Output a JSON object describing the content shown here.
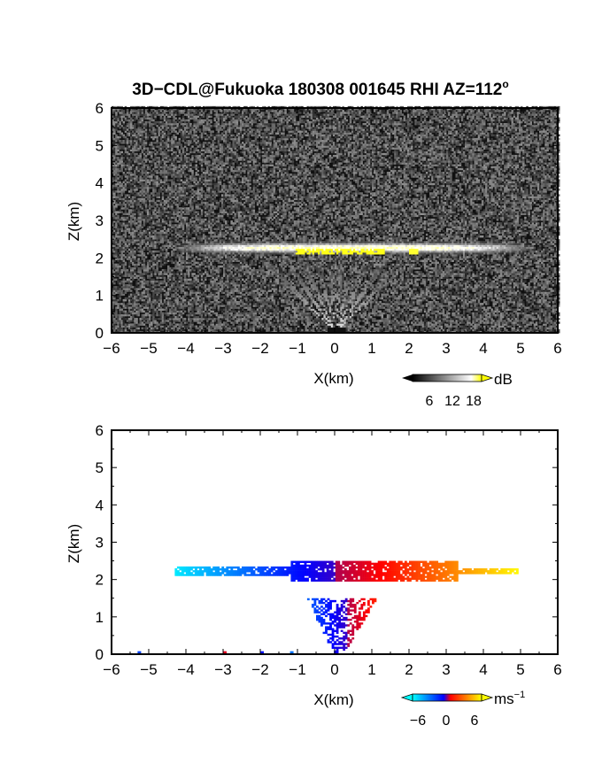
{
  "title": "3D−CDL@Fukuoka 180308 001645 RHI AZ=112",
  "title_superscript": "o",
  "chart_data": [
    {
      "type": "heatmap",
      "name": "reflectivity",
      "xlabel": "X(km)",
      "ylabel": "Z(km)",
      "xlim": [
        -6,
        6
      ],
      "ylim": [
        0,
        6
      ],
      "xticks": [
        "−6",
        "−5",
        "−4",
        "−3",
        "−2",
        "−1",
        "0",
        "1",
        "2",
        "3",
        "4",
        "5",
        "6"
      ],
      "yticks": [
        "0",
        "1",
        "2",
        "3",
        "4",
        "5",
        "6"
      ],
      "background": "#101010",
      "colorbar": {
        "unit": "dB",
        "ticks": [
          "6",
          "12",
          "18"
        ],
        "colors": [
          "#000000",
          "#ffffff",
          "#ffff00"
        ],
        "range": [
          0,
          21
        ]
      },
      "features": [
        {
          "kind": "layer",
          "x_range": [
            -4.5,
            5.5
          ],
          "z_center": 2.25,
          "z_thickness": 0.25,
          "peak_db": 15
        },
        {
          "kind": "strong_core",
          "x_range": [
            -1.1,
            1.3
          ],
          "z": 2.15,
          "db": 20
        },
        {
          "kind": "spot",
          "x": 2.1,
          "z": 2.15,
          "db": 19
        },
        {
          "kind": "fan",
          "origin": [
            0,
            0
          ],
          "top_z": 2.0,
          "x_range": [
            -1.5,
            1.5
          ],
          "db": 9
        }
      ]
    },
    {
      "type": "heatmap",
      "name": "doppler_velocity",
      "xlabel": "X(km)",
      "ylabel": "Z(km)",
      "xlim": [
        -6,
        6
      ],
      "ylim": [
        0,
        6
      ],
      "xticks": [
        "−6",
        "−5",
        "−4",
        "−3",
        "−2",
        "−1",
        "0",
        "1",
        "2",
        "3",
        "4",
        "5",
        "6"
      ],
      "yticks": [
        "0",
        "1",
        "2",
        "3",
        "4",
        "5",
        "6"
      ],
      "background": "#ffffff",
      "colorbar": {
        "unit": "ms",
        "unit_exponent": "−1",
        "ticks": [
          "−6",
          "0",
          "6"
        ],
        "colors": [
          "#00ffff",
          "#0000ff",
          "#ff0000",
          "#ffff00"
        ],
        "range": [
          -8,
          8
        ]
      },
      "features": [
        {
          "kind": "layer",
          "x_range": [
            -4.3,
            4.9
          ],
          "z_center": 2.2,
          "z_thickness": 0.3,
          "v_left": -6.5,
          "v_right": 7.5
        },
        {
          "kind": "column",
          "x_range": [
            -1.4,
            1.5
          ],
          "z_range": [
            0,
            1.5
          ],
          "v_left": -6,
          "v_right": 6
        },
        {
          "kind": "surface_points",
          "x": [
            -5.3,
            -3.0,
            -2.0,
            -1.2
          ],
          "z": [
            0.02,
            0.02,
            0.02,
            0.02
          ],
          "v": [
            -4,
            2,
            -3,
            -5
          ]
        }
      ]
    }
  ]
}
